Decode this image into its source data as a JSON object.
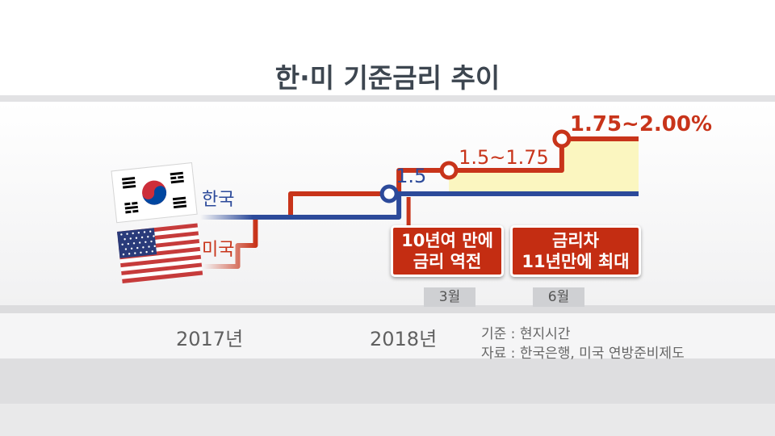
{
  "colors": {
    "korea": "#2c4a9a",
    "usa": "#c8341a",
    "highlight": "#fbf6c0",
    "callout_bg": "#c42d12"
  },
  "chart_data": {
    "type": "line",
    "title": "한·미 기준금리 추이",
    "x_ticks": [
      "2017년",
      "2018년"
    ],
    "series": [
      {
        "name": "한국",
        "points": [
          {
            "t": "2017-01",
            "v": 1.25
          },
          {
            "t": "2018-03",
            "v": 1.25
          },
          {
            "t": "2018-03",
            "v": 1.5,
            "marker": true,
            "label": "1.5"
          },
          {
            "t": "2018-07",
            "v": 1.5
          }
        ]
      },
      {
        "name": "미국",
        "points": [
          {
            "t": "2017-01",
            "v": 0.75
          },
          {
            "t": "2017-03",
            "v": 1.0
          },
          {
            "t": "2017-06",
            "v": 1.25
          },
          {
            "t": "2017-12",
            "v": 1.5
          },
          {
            "t": "2018-03",
            "v": 1.75,
            "marker": true,
            "label": "1.5~1.75"
          },
          {
            "t": "2018-06",
            "v": 2.0,
            "marker": true,
            "label": "1.75~2.00%"
          },
          {
            "t": "2018-07",
            "v": 2.0
          }
        ]
      }
    ],
    "annotations": [
      {
        "text": "10년여 만에\n금리 역전",
        "month": "3월"
      },
      {
        "text": "금리차\n11년만에 최대",
        "month": "6월"
      }
    ]
  },
  "notes": {
    "basis": "기준 : 현지시간",
    "source": "자료 : 한국은행, 미국 연방준비제도"
  }
}
